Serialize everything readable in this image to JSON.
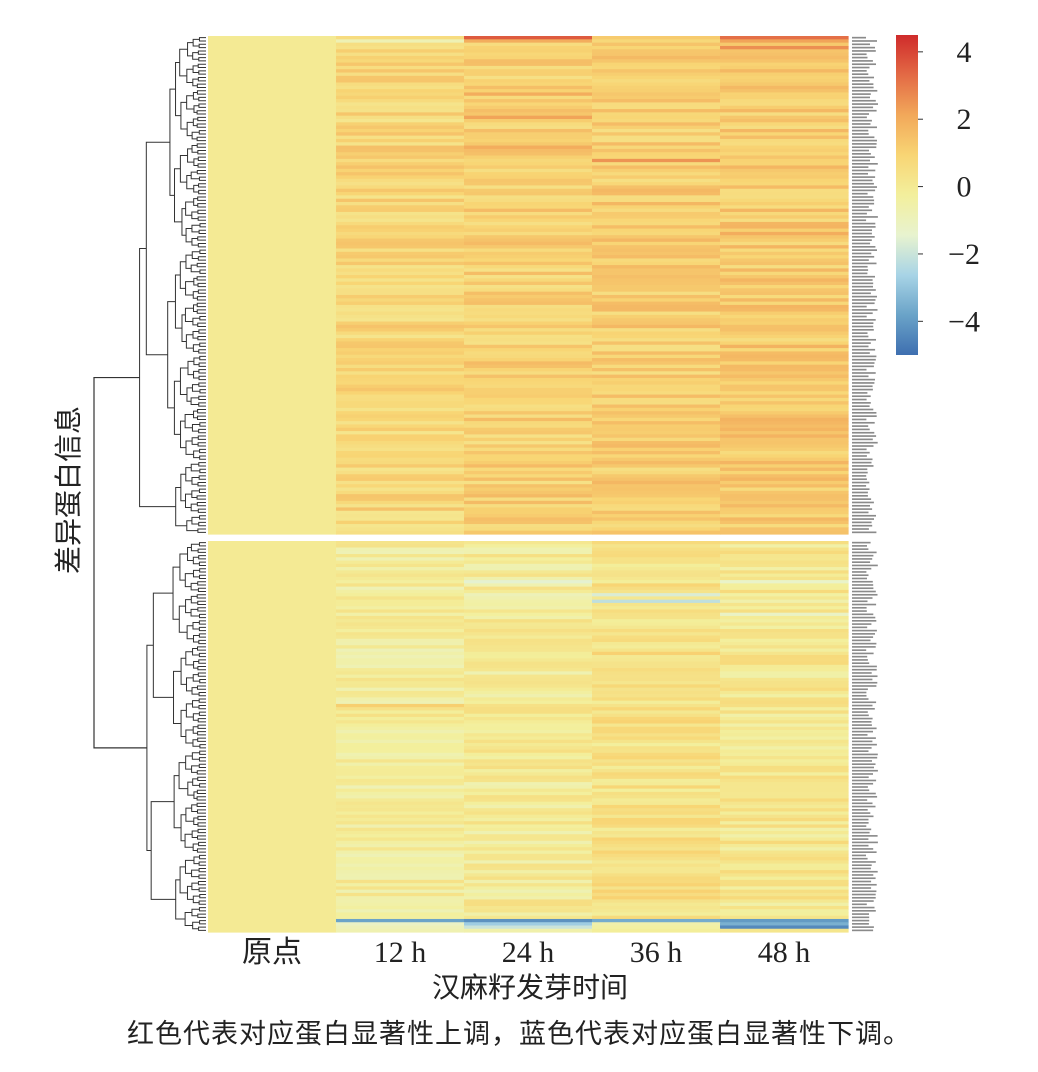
{
  "chart_data": {
    "type": "heatmap",
    "title": "",
    "xlabel": "汉麻籽发芽时间",
    "ylabel": "差异蛋白信息",
    "columns": [
      "原点",
      "12 h",
      "24 h",
      "36 h",
      "48 h"
    ],
    "colorbar": {
      "min": -5,
      "max": 4.5,
      "ticks": [
        4,
        2,
        0,
        -2,
        -4
      ],
      "tick_labels": [
        "4",
        "2",
        "0",
        "−2",
        "−4"
      ],
      "colormap": [
        "#3e6fb0",
        "#6aa3c8",
        "#a8d4e6",
        "#e8f3cf",
        "#f3ef9c",
        "#f8d574",
        "#f2a85a",
        "#e36a45",
        "#cf2b2b"
      ]
    },
    "clusters": [
      {
        "name": "",
        "direction": "up",
        "row_count": 150,
        "row_labels_readable": false,
        "col_means": [
          0,
          0.8,
          1.0,
          1.1,
          1.2
        ],
        "notable_rows": [
          {
            "index": 0,
            "values": [
              0,
              0.6,
              3.6,
              1.2,
              3.2
            ]
          },
          {
            "index": 1,
            "values": [
              0,
              -0.8,
              2.0,
              0.8,
              2.2
            ]
          },
          {
            "index": 3,
            "values": [
              0,
              0.4,
              1.0,
              0.9,
              2.6
            ]
          },
          {
            "index": 17,
            "values": [
              0,
              0.8,
              2.0,
              1.3,
              1.0
            ]
          },
          {
            "index": 24,
            "values": [
              0,
              0.5,
              2.2,
              0.9,
              1.3
            ]
          },
          {
            "index": 33,
            "values": [
              0,
              1.5,
              2.0,
              0.8,
              1.0
            ]
          },
          {
            "index": 37,
            "values": [
              0,
              0.6,
              0.8,
              2.5,
              1.0
            ]
          },
          {
            "index": 59,
            "values": [
              0,
              0.7,
              0.6,
              0.8,
              2.0
            ]
          }
        ]
      },
      {
        "name": "",
        "direction": "down",
        "row_count": 120,
        "row_labels_readable": false,
        "col_means": [
          0,
          -0.2,
          -0.1,
          0.4,
          0.1
        ],
        "notable_rows": [
          {
            "index": 12,
            "values": [
              0,
              -0.3,
              -1.5,
              -0.2,
              -1.3
            ]
          },
          {
            "index": 16,
            "values": [
              0,
              -0.2,
              -0.9,
              -1.7,
              -0.4
            ]
          },
          {
            "index": 18,
            "values": [
              0,
              -0.1,
              -0.5,
              -2.2,
              -0.6
            ]
          },
          {
            "index": 22,
            "values": [
              0,
              -0.5,
              -0.3,
              0.4,
              -1.2
            ]
          },
          {
            "index": 50,
            "values": [
              0,
              1.1,
              0.4,
              0.3,
              0.5
            ]
          },
          {
            "index": 116,
            "values": [
              0,
              -3.8,
              -4.2,
              -3.6,
              -4.0
            ]
          },
          {
            "index": 117,
            "values": [
              0,
              -1.2,
              -2.8,
              -0.6,
              -3.5
            ]
          },
          {
            "index": 118,
            "values": [
              0,
              -0.9,
              -2.0,
              -0.4,
              -4.4
            ]
          }
        ]
      }
    ]
  },
  "caption": "红色代表对应蛋白显著性上调，蓝色代表对应蛋白显著性下调。"
}
